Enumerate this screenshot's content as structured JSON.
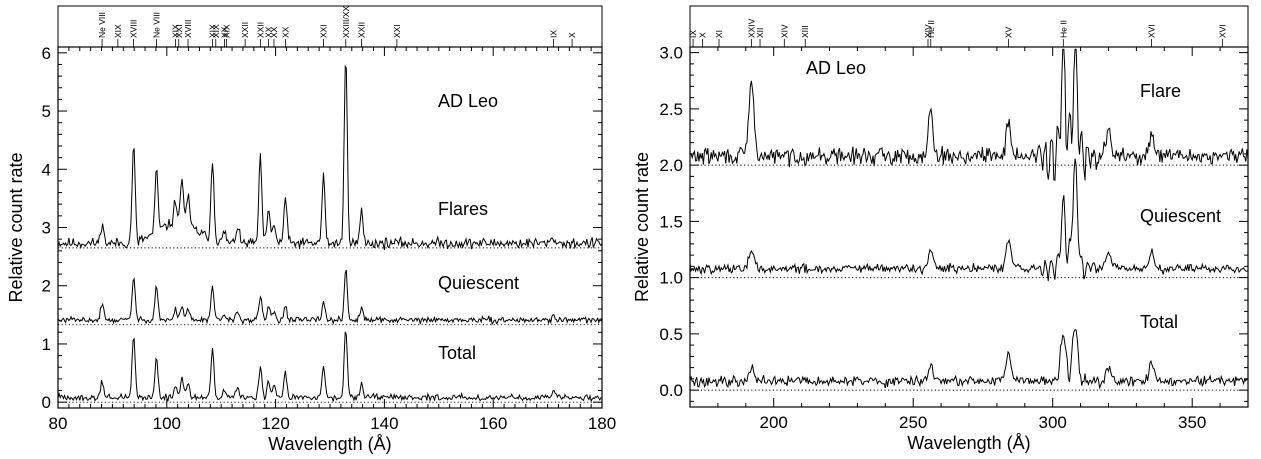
{
  "chart_data": [
    {
      "type": "line",
      "xlabel": "Wavelength (Å)",
      "ylabel": "Relative count rate",
      "xlim": [
        80,
        180
      ],
      "ylim": [
        -0.1,
        6.1
      ],
      "xticks": [
        "80",
        "100",
        "120",
        "140",
        "160",
        "180"
      ],
      "yticks": [
        "0",
        "1",
        "2",
        "3",
        "4",
        "5",
        "6"
      ],
      "star_label": "AD Leo",
      "ion_lines": [
        {
          "x": 88.1,
          "label": "Ne VIII"
        },
        {
          "x": 91.0,
          "label": "XIX"
        },
        {
          "x": 93.9,
          "label": "XVIII"
        },
        {
          "x": 98.1,
          "label": "Ne VIII"
        },
        {
          "x": 101.6,
          "label": "XIX"
        },
        {
          "x": 102.2,
          "label": "XXI"
        },
        {
          "x": 103.9,
          "label": "XVIII"
        },
        {
          "x": 108.4,
          "label": "XIX"
        },
        {
          "x": 109.0,
          "label": "XIX"
        },
        {
          "x": 110.6,
          "label": "XX"
        },
        {
          "x": 111.0,
          "label": "XIX"
        },
        {
          "x": 114.4,
          "label": "XXII"
        },
        {
          "x": 117.2,
          "label": "XXII"
        },
        {
          "x": 118.7,
          "label": "XX"
        },
        {
          "x": 119.7,
          "label": "XX"
        },
        {
          "x": 121.8,
          "label": "XX"
        },
        {
          "x": 128.8,
          "label": "XXI"
        },
        {
          "x": 132.9,
          "label": "XXIII/XX"
        },
        {
          "x": 135.8,
          "label": "XXII"
        },
        {
          "x": 142.3,
          "label": "XXI"
        },
        {
          "x": 171.1,
          "label": "IX"
        },
        {
          "x": 174.5,
          "label": "X"
        }
      ],
      "baseline_levels": [
        2.65,
        1.33,
        0.0
      ],
      "series": [
        {
          "name": "Flares",
          "baseline": 2.65
        },
        {
          "name": "Quiescent",
          "baseline": 1.33
        },
        {
          "name": "Total",
          "baseline": 0.0
        }
      ],
      "peaks": [
        {
          "x": 88.1,
          "heights": [
            0.35,
            0.28,
            0.3
          ]
        },
        {
          "x": 93.9,
          "heights": [
            1.7,
            0.75,
            1.05
          ]
        },
        {
          "x": 98.1,
          "heights": [
            1.05,
            0.6,
            0.72
          ]
        },
        {
          "x": 101.6,
          "heights": [
            0.4,
            0.18,
            0.2
          ]
        },
        {
          "x": 102.8,
          "heights": [
            0.78,
            0.26,
            0.35
          ]
        },
        {
          "x": 103.9,
          "heights": [
            0.5,
            0.2,
            0.25
          ]
        },
        {
          "x": 108.4,
          "heights": [
            1.35,
            0.55,
            0.82
          ]
        },
        {
          "x": 110.6,
          "heights": [
            0.2,
            0.1,
            0.12
          ]
        },
        {
          "x": 113.0,
          "heights": [
            0.3,
            0.15,
            0.2
          ]
        },
        {
          "x": 117.2,
          "heights": [
            1.45,
            0.4,
            0.52
          ]
        },
        {
          "x": 118.7,
          "heights": [
            0.55,
            0.22,
            0.3
          ]
        },
        {
          "x": 119.7,
          "heights": [
            0.35,
            0.15,
            0.2
          ]
        },
        {
          "x": 121.8,
          "heights": [
            0.8,
            0.25,
            0.42
          ]
        },
        {
          "x": 128.8,
          "heights": [
            1.15,
            0.32,
            0.55
          ]
        },
        {
          "x": 132.9,
          "heights": [
            3.2,
            0.88,
            1.2
          ]
        },
        {
          "x": 135.8,
          "heights": [
            0.55,
            0.2,
            0.22
          ]
        },
        {
          "x": 171.1,
          "heights": [
            0.1,
            0.08,
            0.1
          ]
        }
      ]
    },
    {
      "type": "line",
      "xlabel": "Wavelength (Å)",
      "ylabel": "Relative count rate",
      "xlim": [
        170,
        370
      ],
      "ylim": [
        -0.15,
        3.05
      ],
      "xticks": [
        "200",
        "250",
        "300",
        "350"
      ],
      "yticks": [
        "0.0",
        "0.5",
        "1.0",
        "1.5",
        "2.0",
        "2.5",
        "3.0"
      ],
      "star_label": "AD Leo",
      "ion_lines": [
        {
          "x": 171.1,
          "label": "IX"
        },
        {
          "x": 174.5,
          "label": "X"
        },
        {
          "x": 180.4,
          "label": "XI"
        },
        {
          "x": 192.0,
          "label": "XXIV"
        },
        {
          "x": 195.1,
          "label": "XII"
        },
        {
          "x": 203.8,
          "label": "XIV"
        },
        {
          "x": 211.3,
          "label": "XIII"
        },
        {
          "x": 255.3,
          "label": "XIV"
        },
        {
          "x": 256.3,
          "label": "He II"
        },
        {
          "x": 284.2,
          "label": "XV"
        },
        {
          "x": 303.8,
          "label": "He II"
        },
        {
          "x": 335.4,
          "label": "XVI"
        },
        {
          "x": 360.8,
          "label": "XVI"
        }
      ],
      "baseline_levels": [
        2.0,
        1.0,
        0.0
      ],
      "series": [
        {
          "name": "Flare",
          "baseline": 2.0
        },
        {
          "name": "Quiescent",
          "baseline": 1.0
        },
        {
          "name": "Total",
          "baseline": 0.0
        }
      ],
      "peaks": [
        {
          "x": 192.0,
          "heights": [
            0.65,
            0.15,
            0.15
          ]
        },
        {
          "x": 256.3,
          "heights": [
            0.4,
            0.15,
            0.15
          ]
        },
        {
          "x": 284.2,
          "heights": [
            0.3,
            0.25,
            0.25
          ]
        },
        {
          "x": 303.8,
          "heights": [
            0.9,
            0.55,
            0.45
          ]
        },
        {
          "x": 308.0,
          "heights": [
            0.9,
            0.9,
            0.5
          ]
        },
        {
          "x": 320.0,
          "heights": [
            0.2,
            0.15,
            0.15
          ]
        },
        {
          "x": 335.4,
          "heights": [
            0.15,
            0.15,
            0.15
          ]
        }
      ]
    }
  ]
}
